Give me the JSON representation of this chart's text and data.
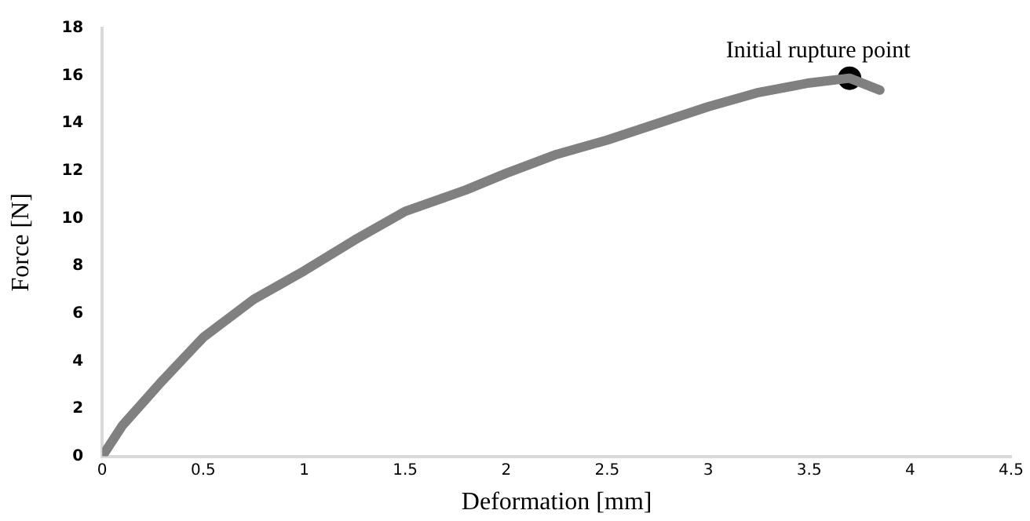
{
  "chart_data": {
    "type": "line",
    "xlabel": "Deformation [mm]",
    "ylabel": "Force [N]",
    "xlim": [
      0,
      4.5
    ],
    "xticks": [
      0,
      0.5,
      1,
      1.5,
      2,
      2.5,
      3,
      3.5,
      4,
      4.5
    ],
    "ylim": [
      0,
      18
    ],
    "yticks": [
      0,
      2,
      4,
      6,
      8,
      10,
      12,
      14,
      16,
      18
    ],
    "grid": false,
    "legend": false,
    "marker": "none",
    "line_style": "solid",
    "series": [
      {
        "color": "#808080",
        "x": [
          0,
          0.1,
          0.3,
          0.5,
          0.75,
          1,
          1.25,
          1.5,
          1.8,
          2,
          2.25,
          2.5,
          2.75,
          3,
          3.25,
          3.5,
          3.7,
          3.85
        ],
        "values": [
          0,
          1.3,
          3.2,
          5.0,
          6.6,
          7.8,
          9.1,
          10.3,
          11.2,
          11.9,
          12.7,
          13.3,
          14.0,
          14.7,
          15.3,
          15.7,
          15.9,
          15.4
        ]
      },
      {
        "type": "scatter",
        "color": "#000000",
        "marker": "circle",
        "x": [
          3.7
        ],
        "values": [
          15.9
        ]
      }
    ],
    "annotations": [
      {
        "text": "Initial rupture point",
        "x": 3.7,
        "y": 15.9
      }
    ]
  }
}
